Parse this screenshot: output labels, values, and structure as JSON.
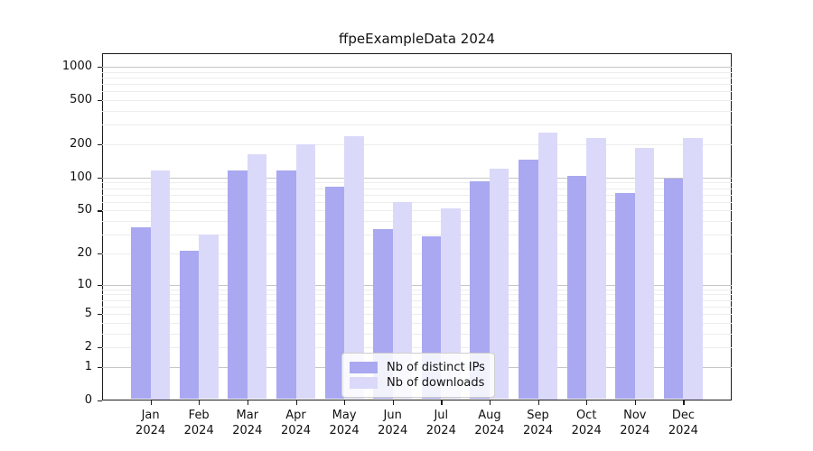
{
  "chart_data": {
    "type": "bar",
    "title": "ffpeExampleData 2024",
    "categories": [
      "Jan 2024",
      "Feb 2024",
      "Mar 2024",
      "Apr 2024",
      "May 2024",
      "Jun 2024",
      "Jul 2024",
      "Aug 2024",
      "Sep 2024",
      "Oct 2024",
      "Nov 2024",
      "Dec 2024"
    ],
    "series": [
      {
        "name": "Nb of distinct IPs",
        "color": "#a9a8f1",
        "values": [
          35,
          21,
          115,
          115,
          83,
          34,
          29,
          92,
          146,
          103,
          72,
          97
        ]
      },
      {
        "name": "Nb of downloads",
        "color": "#dbd9f9",
        "values": [
          117,
          30,
          162,
          200,
          235,
          60,
          52,
          120,
          255,
          226,
          185,
          230
        ]
      }
    ],
    "xlabel": "",
    "ylabel": "",
    "yscale": "log1p",
    "ylim": [
      0,
      1322
    ],
    "yticks": [
      0,
      1,
      2,
      5,
      10,
      20,
      50,
      100,
      200,
      500,
      1000
    ],
    "ytick_major_gridlines": [
      1,
      10,
      100,
      1000
    ],
    "grid": true,
    "legend_position": "inside lower-center"
  }
}
